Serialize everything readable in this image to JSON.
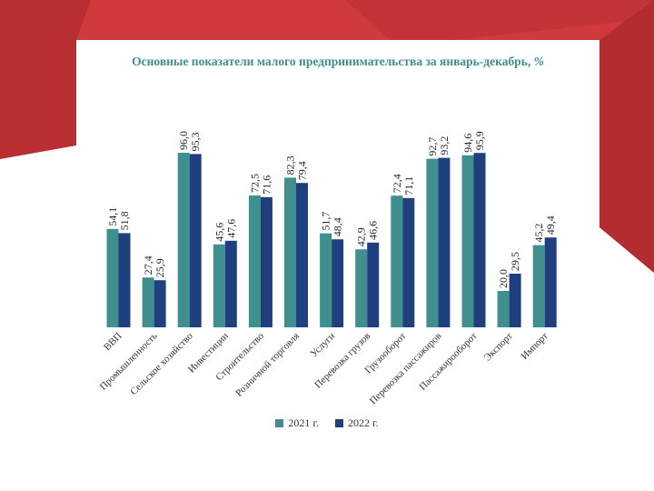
{
  "colors": {
    "series_2021": "#3f8f8e",
    "series_2022": "#1f3f7f",
    "banner_red": "#d03a3c",
    "banner_dark": "#a8262a",
    "title_color": "#3e8f8c"
  },
  "chart_data": {
    "type": "bar",
    "title": "Основные показатели малого предпринимательства за январь-декабрь,",
    "title_unit": "%",
    "categories": [
      "ВВП",
      "Промышленность",
      "Сельское хозяйство",
      "Инвестиции",
      "Строительство",
      "Розничной торговля",
      "Услуги",
      "Перевозка грузов",
      "Грузооборот",
      "Перевозка пассажиров",
      "Пассажирооборот",
      "Экспорт",
      "Импорт"
    ],
    "series": [
      {
        "name": "2021 г.",
        "values": [
          54.1,
          27.4,
          96.0,
          45.6,
          72.5,
          82.3,
          51.7,
          42.9,
          72.4,
          92.7,
          94.6,
          20.0,
          45.2
        ]
      },
      {
        "name": "2022 г.",
        "values": [
          51.8,
          25.9,
          95.3,
          47.6,
          71.6,
          79.4,
          48.4,
          46.6,
          71.1,
          93.2,
          95.9,
          29.5,
          49.4
        ]
      }
    ],
    "value_labels": [
      [
        "54,1",
        "27,4",
        "96,0",
        "45,6",
        "72,5",
        "82,3",
        "51,7",
        "42,9",
        "72,4",
        "92,7",
        "94,6",
        "20,0",
        "45,2"
      ],
      [
        "51,8",
        "25,9",
        "95,3",
        "47,6",
        "71,6",
        "79,4",
        "48,4",
        "46,6",
        "71,1",
        "93,2",
        "95,9",
        "29,5",
        "49,4"
      ]
    ],
    "ylim": [
      0,
      100
    ],
    "grid": false,
    "legend_position": "bottom"
  }
}
